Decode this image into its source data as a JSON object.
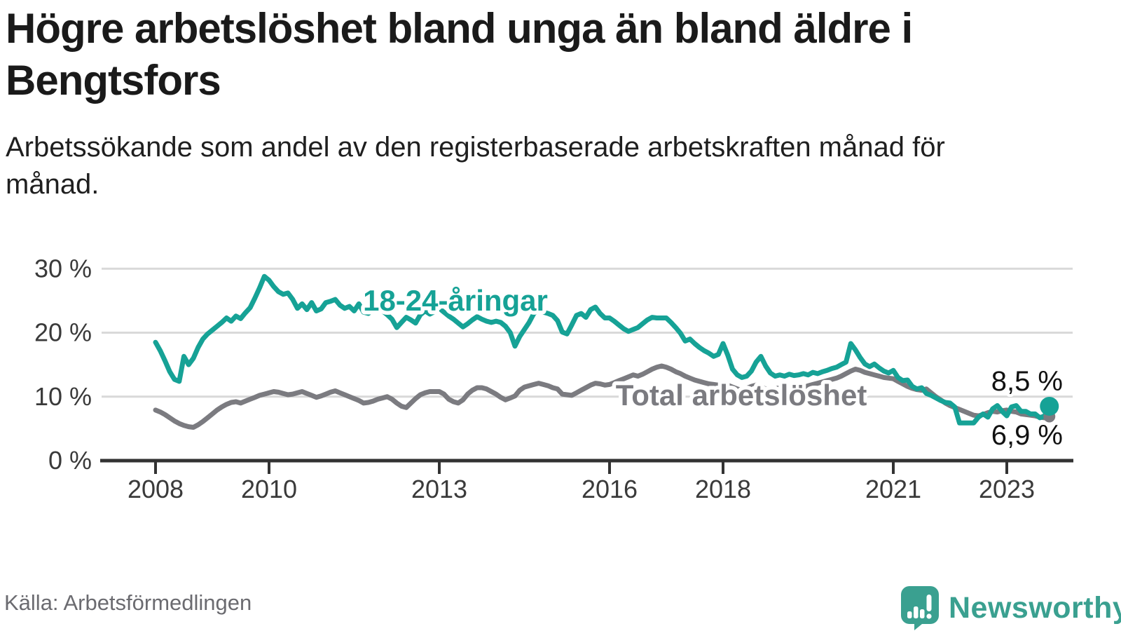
{
  "header": {
    "title": "Högre arbetslöshet bland unga än bland äldre i Bengtsfors",
    "subtitle": "Arbetssökande som andel av den registerbaserade arbetskraften månad för månad."
  },
  "chart_data": {
    "type": "line",
    "unit": "%",
    "grid": true,
    "x_axis": {
      "ticks": [
        "2008",
        "2010",
        "2013",
        "2016",
        "2018",
        "2021",
        "2023"
      ]
    },
    "y_axis": {
      "labels": [
        "0 %",
        "10 %",
        "20 %",
        "30 %"
      ],
      "values": [
        0,
        10,
        20,
        30
      ],
      "ylim": [
        0,
        32
      ]
    },
    "start": "2008-01",
    "frequency": "monthly",
    "series": [
      {
        "id": "youth",
        "label": "18-24-åringar",
        "color": "#16a296",
        "end_label": "8,5 %",
        "end_value": 8.5,
        "values": [
          18.5,
          17.2,
          15.6,
          13.9,
          12.7,
          12.4,
          16.3,
          15.0,
          16.0,
          17.7,
          19.0,
          19.8,
          20.4,
          21.0,
          21.6,
          22.3,
          21.8,
          22.6,
          22.2,
          23.1,
          23.9,
          25.4,
          27.0,
          28.8,
          28.2,
          27.2,
          26.4,
          26.0,
          26.2,
          25.2,
          23.8,
          24.5,
          23.6,
          24.7,
          23.4,
          23.7,
          24.7,
          24.9,
          25.2,
          24.3,
          23.8,
          24.1,
          23.4,
          24.5,
          23.2,
          23.0,
          23.6,
          24.0,
          23.4,
          22.8,
          22.1,
          20.8,
          21.6,
          22.4,
          22.0,
          21.5,
          22.8,
          23.4,
          22.9,
          23.3,
          23.8,
          23.2,
          22.6,
          22.1,
          21.5,
          20.9,
          21.4,
          22.0,
          22.5,
          22.1,
          21.8,
          21.6,
          21.8,
          21.6,
          21.0,
          20.0,
          17.9,
          19.4,
          20.5,
          21.6,
          23.0,
          23.6,
          23.2,
          23.0,
          22.7,
          21.9,
          20.1,
          19.8,
          21.2,
          22.7,
          23.0,
          22.4,
          23.6,
          24.0,
          23.0,
          22.3,
          22.3,
          21.8,
          21.2,
          20.6,
          20.2,
          20.5,
          20.8,
          21.4,
          22.0,
          22.4,
          22.3,
          22.3,
          22.3,
          21.6,
          20.8,
          19.9,
          18.7,
          19.0,
          18.3,
          17.7,
          17.2,
          16.8,
          16.3,
          16.6,
          18.3,
          16.5,
          14.3,
          13.4,
          13.0,
          13.2,
          14.0,
          15.4,
          16.3,
          14.8,
          13.7,
          13.2,
          13.4,
          13.2,
          13.5,
          13.3,
          13.4,
          13.6,
          13.4,
          13.8,
          13.6,
          13.9,
          14.1,
          14.4,
          14.6,
          15.0,
          15.4,
          18.3,
          17.3,
          16.1,
          15.1,
          14.7,
          15.1,
          14.5,
          14.0,
          13.7,
          14.1,
          13.0,
          12.5,
          12.6,
          11.6,
          11.2,
          11.4,
          10.5,
          10.2,
          9.8,
          9.4,
          9.1,
          9.0,
          8.4,
          5.9,
          5.9,
          5.9,
          5.9,
          6.8,
          7.3,
          6.8,
          8.1,
          8.6,
          7.7,
          7.0,
          8.4,
          8.6,
          7.7,
          7.7,
          7.3,
          7.3,
          6.7,
          7.0,
          8.5
        ]
      },
      {
        "id": "total",
        "label": "Total arbetslöshet",
        "color": "#7b7b80",
        "end_label": "6,9 %",
        "end_value": 6.9,
        "values": [
          7.9,
          7.6,
          7.2,
          6.7,
          6.2,
          5.8,
          5.5,
          5.3,
          5.2,
          5.6,
          6.1,
          6.7,
          7.3,
          7.9,
          8.4,
          8.8,
          9.1,
          9.2,
          9.0,
          9.3,
          9.6,
          9.9,
          10.2,
          10.4,
          10.6,
          10.8,
          10.7,
          10.5,
          10.3,
          10.4,
          10.6,
          10.8,
          10.5,
          10.2,
          9.9,
          10.1,
          10.4,
          10.7,
          10.9,
          10.6,
          10.3,
          10.0,
          9.7,
          9.4,
          9.0,
          9.1,
          9.3,
          9.6,
          9.8,
          10.0,
          9.6,
          9.0,
          8.5,
          8.3,
          9.0,
          9.7,
          10.3,
          10.6,
          10.8,
          10.8,
          10.8,
          10.4,
          9.6,
          9.2,
          9.0,
          9.5,
          10.4,
          11.0,
          11.4,
          11.4,
          11.2,
          10.8,
          10.4,
          9.9,
          9.5,
          9.8,
          10.1,
          11.0,
          11.5,
          11.7,
          11.9,
          12.1,
          11.9,
          11.7,
          11.4,
          11.2,
          10.4,
          10.3,
          10.2,
          10.6,
          11.0,
          11.4,
          11.8,
          12.1,
          12.0,
          11.8,
          11.9,
          12.2,
          12.5,
          12.8,
          13.1,
          13.4,
          13.2,
          13.5,
          13.9,
          14.3,
          14.6,
          14.8,
          14.6,
          14.3,
          13.9,
          13.6,
          13.2,
          12.9,
          12.6,
          12.4,
          12.2,
          12.0,
          11.9,
          11.8,
          12.0,
          11.8,
          11.5,
          11.2,
          11.0,
          11.3,
          11.6,
          11.8,
          11.5,
          11.2,
          11.0,
          11.2,
          11.4,
          11.6,
          11.5,
          11.3,
          11.2,
          11.4,
          11.7,
          11.9,
          12.1,
          12.3,
          12.5,
          12.7,
          12.9,
          13.2,
          13.6,
          14.0,
          14.3,
          14.1,
          13.8,
          13.6,
          13.4,
          13.2,
          13.0,
          12.9,
          12.8,
          12.4,
          12.0,
          11.6,
          11.3,
          11.1,
          11.0,
          11.2,
          10.6,
          10.0,
          9.5,
          9.0,
          8.6,
          8.3,
          8.0,
          7.7,
          7.4,
          7.1,
          7.0,
          7.2,
          7.5,
          7.7,
          7.6,
          7.8,
          7.9,
          7.7,
          7.6,
          7.3,
          7.2,
          7.1,
          7.0,
          6.8,
          6.7,
          6.9
        ]
      }
    ]
  },
  "footer": {
    "source": "Källa: Arbetsförmedlingen",
    "brand": "Newsworthy",
    "brand_color": "#3aa090",
    "logo_icon": "speech-bubble-bar-chart-exclamation"
  }
}
